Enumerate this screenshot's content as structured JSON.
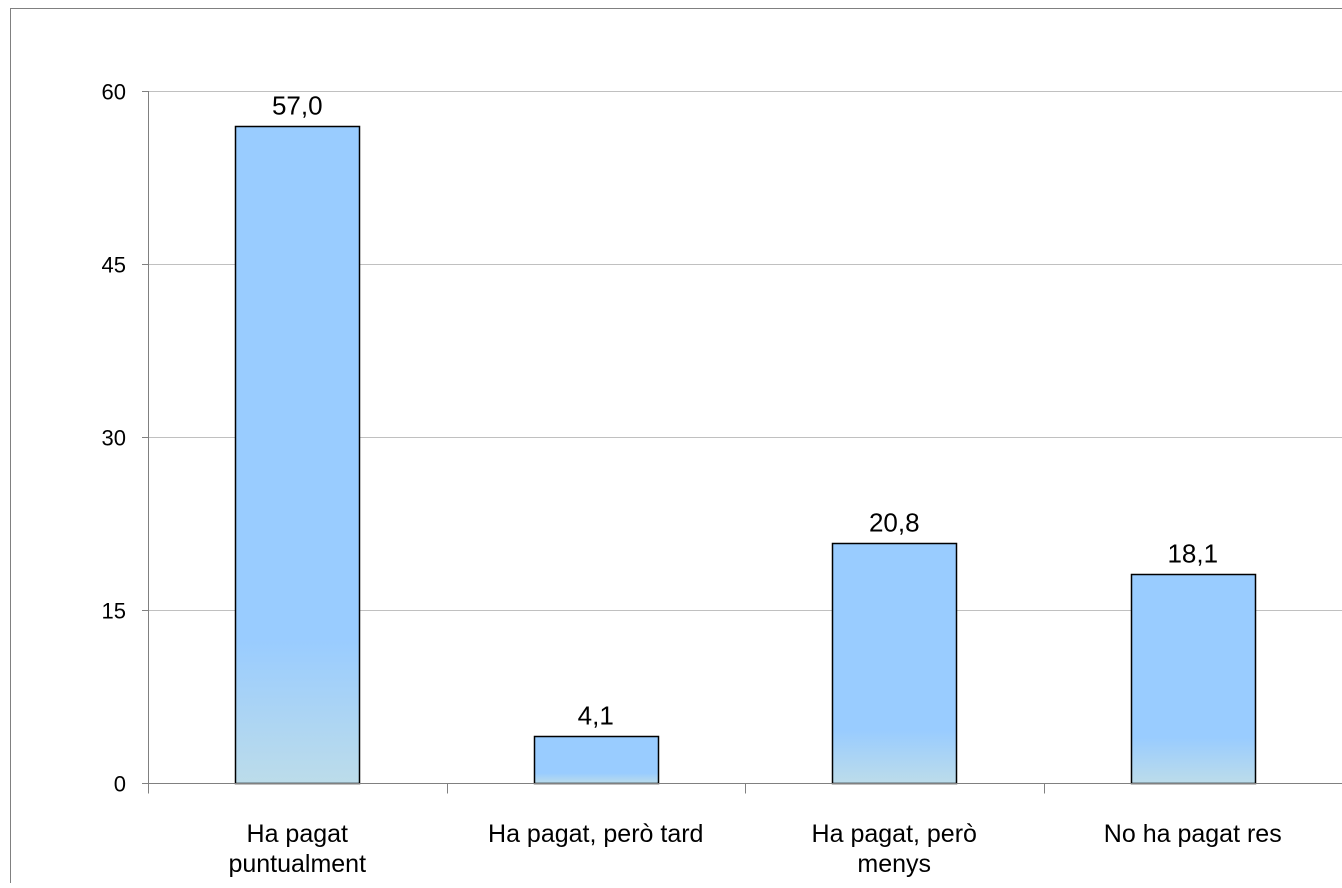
{
  "chart_data": {
    "type": "bar",
    "title": "",
    "xlabel": "",
    "ylabel": "",
    "categories": [
      [
        "Ha pagat",
        "puntualment"
      ],
      [
        "Ha pagat, però tard"
      ],
      [
        "Ha pagat, però",
        "menys"
      ],
      [
        "No ha pagat res"
      ]
    ],
    "values": [
      57.0,
      4.1,
      20.8,
      18.1
    ],
    "data_labels": [
      "57,0",
      "4,1",
      "20,8",
      "18,1"
    ],
    "y_ticks": [
      0,
      15,
      30,
      45,
      60
    ],
    "ylim": [
      0,
      60
    ],
    "grid": true,
    "legend": "none",
    "colors": {
      "bar_fill_top": "#99ccff",
      "bar_fill_bottom": "#bcdcea",
      "bar_stroke": "#000000",
      "gridline": "#c0c0c0",
      "axis": "#808080",
      "frame": "#808080"
    }
  }
}
